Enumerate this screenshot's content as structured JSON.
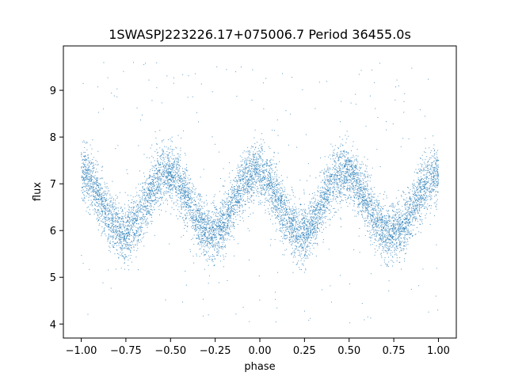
{
  "chart_data": {
    "type": "scatter",
    "title": "1SWASPJ223226.17+075006.7 Period 36455.0s",
    "xlabel": "phase",
    "ylabel": "flux",
    "xlim": [
      -1.1,
      1.1
    ],
    "ylim": [
      3.7,
      9.95
    ],
    "x_ticks": [
      -1.0,
      -0.75,
      -0.5,
      -0.25,
      0.0,
      0.25,
      0.5,
      0.75,
      1.0
    ],
    "x_tick_labels": [
      "−1.00",
      "−0.75",
      "−0.50",
      "−0.25",
      "0.00",
      "0.25",
      "0.50",
      "0.75",
      "1.00"
    ],
    "y_ticks": [
      4,
      5,
      6,
      7,
      8,
      9
    ],
    "y_tick_labels": [
      "4",
      "5",
      "6",
      "7",
      "8",
      "9"
    ],
    "grid": false,
    "legend": "none",
    "point_color": "#1f77b4",
    "series": [
      {
        "phase_range": [
          -1.0,
          1.0
        ],
        "model_points": [
          {
            "x": -1.0,
            "y": 7.2
          },
          {
            "x": -0.76,
            "y": 5.95
          },
          {
            "x": -0.52,
            "y": 7.25
          },
          {
            "x": -0.27,
            "y": 5.95
          },
          {
            "x": -0.02,
            "y": 7.25
          },
          {
            "x": 0.23,
            "y": 5.95
          },
          {
            "x": 0.47,
            "y": 7.25
          },
          {
            "x": 0.73,
            "y": 5.95
          },
          {
            "x": 1.0,
            "y": 7.2
          }
        ],
        "scatter_sigma": 0.3,
        "outlier_range": [
          4.0,
          9.7
        ]
      }
    ]
  }
}
